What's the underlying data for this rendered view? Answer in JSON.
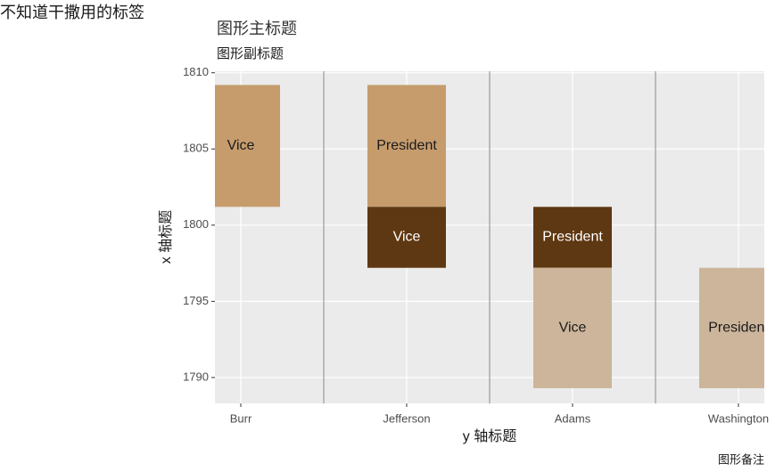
{
  "page_tag": "不知道干撒用的标签",
  "chart_data": {
    "type": "range_bar",
    "title": "图形主标题",
    "subtitle": "图形副标题",
    "x_label": "y 轴标题",
    "y_label": "x 轴标题",
    "caption": "图形备注",
    "categories": [
      "Burr",
      "Jefferson",
      "Adams",
      "Washington"
    ],
    "bars": [
      {
        "category": "Burr",
        "start": 1801.2,
        "end": 1809.2,
        "label": "Vice",
        "color": "#c69c6d",
        "text_color": "#1a1a1a"
      },
      {
        "category": "Jefferson",
        "start": 1801.2,
        "end": 1809.2,
        "label": "President",
        "color": "#c69c6d",
        "text_color": "#1a1a1a"
      },
      {
        "category": "Jefferson",
        "start": 1797.2,
        "end": 1801.2,
        "label": "Vice",
        "color": "#5e3812",
        "text_color": "#ffffff"
      },
      {
        "category": "Adams",
        "start": 1797.2,
        "end": 1801.2,
        "label": "President",
        "color": "#5e3812",
        "text_color": "#ffffff"
      },
      {
        "category": "Adams",
        "start": 1789.3,
        "end": 1797.2,
        "label": "Vice",
        "color": "#cdb59b",
        "text_color": "#1a1a1a"
      },
      {
        "category": "Washington",
        "start": 1789.3,
        "end": 1797.2,
        "label": "President",
        "color": "#cdb59b",
        "text_color": "#1a1a1a"
      }
    ],
    "ylim": [
      1788.3,
      1810.1
    ],
    "yticks": [
      1790,
      1795,
      1800,
      1805,
      1810
    ],
    "grid": true
  }
}
